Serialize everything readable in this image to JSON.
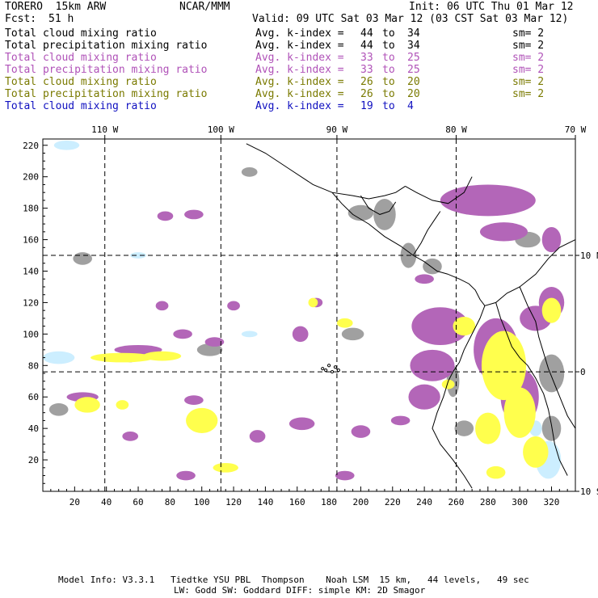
{
  "header": {
    "model": "TORERO  15km ARW",
    "org": "NCAR/MMM",
    "init": "Init: 06 UTC Thu 01 Mar 12",
    "fcst_label": "Fcst:",
    "fcst_value": "51 h",
    "valid": "Valid: 09 UTC Sat 03 Mar 12 (03 CST Sat 03 Mar 12)"
  },
  "legend_rows": [
    {
      "field": "Total cloud mixing ratio",
      "k": "Avg. k-index =",
      "a": "44",
      "to": "to",
      "b": "34",
      "sm": "sm= 2",
      "color": "#000000"
    },
    {
      "field": "Total precipitation mixing ratio",
      "k": "Avg. k-index =",
      "a": "44",
      "to": "to",
      "b": "34",
      "sm": "sm= 2",
      "color": "#000000"
    },
    {
      "field": "Total cloud mixing ratio",
      "k": "Avg. k-index =",
      "a": "33",
      "to": "to",
      "b": "25",
      "sm": "sm= 2",
      "color": "#b052b8"
    },
    {
      "field": "Total precipitation mixing ratio",
      "k": "Avg. k-index =",
      "a": "33",
      "to": "to",
      "b": "25",
      "sm": "sm= 2",
      "color": "#b052b8"
    },
    {
      "field": "Total cloud mixing ratio",
      "k": "Avg. k-index =",
      "a": "26",
      "to": "to",
      "b": "20",
      "sm": "sm= 2",
      "color": "#7a7a00"
    },
    {
      "field": "Total precipitation mixing ratio",
      "k": "Avg. k-index =",
      "a": "26",
      "to": "to",
      "b": "20",
      "sm": "sm= 2",
      "color": "#7a7a00"
    },
    {
      "field": "Total cloud mixing ratio",
      "k": "Avg. k-index =",
      "a": "19",
      "to": "to",
      "b": "4",
      "sm": "",
      "color": "#1010c0"
    }
  ],
  "footer": {
    "line1": "Model Info: V3.3.1   Tiedtke YSU PBL  Thompson    Noah LSM  15 km,   44 levels,   49 sec",
    "line2": "LW: Godd SW: Goddard DIFF: simple KM: 2D Smagor"
  },
  "chart_data": {
    "type": "heatmap",
    "xlim": [
      0,
      335
    ],
    "ylim": [
      0,
      224
    ],
    "x_ticks": [
      20,
      40,
      60,
      80,
      100,
      120,
      140,
      160,
      180,
      200,
      220,
      240,
      260,
      280,
      300,
      320
    ],
    "y_ticks": [
      20,
      40,
      60,
      80,
      100,
      120,
      140,
      160,
      180,
      200,
      220
    ],
    "lon_labels": [
      {
        "label": "110 W",
        "x": 39
      },
      {
        "label": "100 W",
        "x": 112
      },
      {
        "label": "90 W",
        "x": 185
      },
      {
        "label": "80 W",
        "x": 260
      },
      {
        "label": "70 W",
        "x": 335
      }
    ],
    "lat_labels": [
      {
        "label": "10 N",
        "y": 150
      },
      {
        "label": "0",
        "y": 76
      },
      {
        "label": "10 S",
        "y": 0
      }
    ],
    "grid_x": [
      39,
      112,
      185,
      260
    ],
    "grid_y": [
      150,
      76
    ],
    "colors": {
      "gray": "#a0a0a0",
      "purple": "#b366b8",
      "yellow": "#ffff4d",
      "lightblue": "#cceeff"
    },
    "blobs": [
      {
        "c": "gray",
        "x": 25,
        "y": 148,
        "rx": 6,
        "ry": 4
      },
      {
        "c": "gray",
        "x": 10,
        "y": 52,
        "rx": 6,
        "ry": 4
      },
      {
        "c": "gray",
        "x": 55,
        "y": 86,
        "rx": 5,
        "ry": 4
      },
      {
        "c": "gray",
        "x": 105,
        "y": 90,
        "rx": 8,
        "ry": 4
      },
      {
        "c": "gray",
        "x": 200,
        "y": 177,
        "rx": 8,
        "ry": 5
      },
      {
        "c": "gray",
        "x": 215,
        "y": 176,
        "rx": 7,
        "ry": 10
      },
      {
        "c": "gray",
        "x": 230,
        "y": 150,
        "rx": 5,
        "ry": 8
      },
      {
        "c": "gray",
        "x": 245,
        "y": 143,
        "rx": 6,
        "ry": 5
      },
      {
        "c": "gray",
        "x": 130,
        "y": 203,
        "rx": 5,
        "ry": 3
      },
      {
        "c": "gray",
        "x": 195,
        "y": 100,
        "rx": 7,
        "ry": 4
      },
      {
        "c": "gray",
        "x": 258,
        "y": 70,
        "rx": 4,
        "ry": 10
      },
      {
        "c": "gray",
        "x": 320,
        "y": 75,
        "rx": 8,
        "ry": 12
      },
      {
        "c": "gray",
        "x": 320,
        "y": 40,
        "rx": 6,
        "ry": 8
      },
      {
        "c": "gray",
        "x": 305,
        "y": 160,
        "rx": 8,
        "ry": 5
      },
      {
        "c": "gray",
        "x": 265,
        "y": 40,
        "rx": 6,
        "ry": 5
      },
      {
        "c": "purple",
        "x": 280,
        "y": 185,
        "rx": 30,
        "ry": 10
      },
      {
        "c": "purple",
        "x": 290,
        "y": 165,
        "rx": 15,
        "ry": 6
      },
      {
        "c": "purple",
        "x": 320,
        "y": 160,
        "rx": 6,
        "ry": 8
      },
      {
        "c": "purple",
        "x": 250,
        "y": 105,
        "rx": 18,
        "ry": 12
      },
      {
        "c": "purple",
        "x": 245,
        "y": 80,
        "rx": 14,
        "ry": 10
      },
      {
        "c": "purple",
        "x": 240,
        "y": 60,
        "rx": 10,
        "ry": 8
      },
      {
        "c": "purple",
        "x": 285,
        "y": 90,
        "rx": 14,
        "ry": 20
      },
      {
        "c": "purple",
        "x": 310,
        "y": 110,
        "rx": 10,
        "ry": 8
      },
      {
        "c": "purple",
        "x": 300,
        "y": 60,
        "rx": 12,
        "ry": 18
      },
      {
        "c": "purple",
        "x": 320,
        "y": 120,
        "rx": 8,
        "ry": 10
      },
      {
        "c": "purple",
        "x": 77,
        "y": 175,
        "rx": 5,
        "ry": 3
      },
      {
        "c": "purple",
        "x": 95,
        "y": 176,
        "rx": 6,
        "ry": 3
      },
      {
        "c": "purple",
        "x": 25,
        "y": 60,
        "rx": 10,
        "ry": 3
      },
      {
        "c": "purple",
        "x": 60,
        "y": 90,
        "rx": 15,
        "ry": 3
      },
      {
        "c": "purple",
        "x": 75,
        "y": 118,
        "rx": 4,
        "ry": 3
      },
      {
        "c": "purple",
        "x": 120,
        "y": 118,
        "rx": 4,
        "ry": 3
      },
      {
        "c": "purple",
        "x": 162,
        "y": 100,
        "rx": 5,
        "ry": 5
      },
      {
        "c": "purple",
        "x": 172,
        "y": 120,
        "rx": 4,
        "ry": 3
      },
      {
        "c": "purple",
        "x": 163,
        "y": 43,
        "rx": 8,
        "ry": 4
      },
      {
        "c": "purple",
        "x": 200,
        "y": 38,
        "rx": 6,
        "ry": 4
      },
      {
        "c": "purple",
        "x": 95,
        "y": 58,
        "rx": 6,
        "ry": 3
      },
      {
        "c": "purple",
        "x": 55,
        "y": 35,
        "rx": 5,
        "ry": 3
      },
      {
        "c": "purple",
        "x": 90,
        "y": 10,
        "rx": 6,
        "ry": 3
      },
      {
        "c": "purple",
        "x": 135,
        "y": 35,
        "rx": 5,
        "ry": 4
      },
      {
        "c": "purple",
        "x": 190,
        "y": 10,
        "rx": 6,
        "ry": 3
      },
      {
        "c": "purple",
        "x": 225,
        "y": 45,
        "rx": 6,
        "ry": 3
      },
      {
        "c": "purple",
        "x": 88,
        "y": 100,
        "rx": 6,
        "ry": 3
      },
      {
        "c": "purple",
        "x": 240,
        "y": 135,
        "rx": 6,
        "ry": 3
      },
      {
        "c": "purple",
        "x": 108,
        "y": 95,
        "rx": 6,
        "ry": 3
      },
      {
        "c": "yellow",
        "x": 290,
        "y": 80,
        "rx": 14,
        "ry": 22
      },
      {
        "c": "yellow",
        "x": 300,
        "y": 50,
        "rx": 10,
        "ry": 16
      },
      {
        "c": "yellow",
        "x": 280,
        "y": 40,
        "rx": 8,
        "ry": 10
      },
      {
        "c": "yellow",
        "x": 320,
        "y": 115,
        "rx": 6,
        "ry": 8
      },
      {
        "c": "yellow",
        "x": 265,
        "y": 105,
        "rx": 7,
        "ry": 6
      },
      {
        "c": "yellow",
        "x": 310,
        "y": 25,
        "rx": 8,
        "ry": 10
      },
      {
        "c": "yellow",
        "x": 50,
        "y": 85,
        "rx": 20,
        "ry": 3
      },
      {
        "c": "yellow",
        "x": 75,
        "y": 86,
        "rx": 12,
        "ry": 3
      },
      {
        "c": "yellow",
        "x": 28,
        "y": 55,
        "rx": 8,
        "ry": 5
      },
      {
        "c": "yellow",
        "x": 50,
        "y": 55,
        "rx": 4,
        "ry": 3
      },
      {
        "c": "yellow",
        "x": 100,
        "y": 45,
        "rx": 10,
        "ry": 8
      },
      {
        "c": "yellow",
        "x": 115,
        "y": 15,
        "rx": 8,
        "ry": 3
      },
      {
        "c": "yellow",
        "x": 190,
        "y": 107,
        "rx": 5,
        "ry": 3
      },
      {
        "c": "yellow",
        "x": 170,
        "y": 120,
        "rx": 3,
        "ry": 3
      },
      {
        "c": "yellow",
        "x": 285,
        "y": 12,
        "rx": 6,
        "ry": 4
      },
      {
        "c": "yellow",
        "x": 255,
        "y": 68,
        "rx": 4,
        "ry": 3
      },
      {
        "c": "lightblue",
        "x": 15,
        "y": 220,
        "rx": 8,
        "ry": 3
      },
      {
        "c": "lightblue",
        "x": 10,
        "y": 85,
        "rx": 10,
        "ry": 4
      },
      {
        "c": "lightblue",
        "x": 318,
        "y": 20,
        "rx": 8,
        "ry": 12
      },
      {
        "c": "lightblue",
        "x": 310,
        "y": 40,
        "rx": 4,
        "ry": 5
      },
      {
        "c": "lightblue",
        "x": 25,
        "y": 60,
        "rx": 3,
        "ry": 2
      },
      {
        "c": "lightblue",
        "x": 60,
        "y": 150,
        "rx": 5,
        "ry": 2
      },
      {
        "c": "lightblue",
        "x": 130,
        "y": 100,
        "rx": 5,
        "ry": 2
      }
    ],
    "coastlines": [
      [
        [
          128,
          221
        ],
        [
          140,
          215
        ],
        [
          155,
          205
        ],
        [
          170,
          195
        ],
        [
          182,
          190
        ],
        [
          195,
          188
        ],
        [
          205,
          186
        ],
        [
          215,
          188
        ],
        [
          222,
          190
        ],
        [
          228,
          194
        ]
      ],
      [
        [
          182,
          190
        ],
        [
          188,
          183
        ],
        [
          195,
          176
        ],
        [
          205,
          170
        ],
        [
          215,
          162
        ],
        [
          225,
          156
        ],
        [
          233,
          150
        ],
        [
          240,
          146
        ],
        [
          248,
          140
        ],
        [
          255,
          138
        ]
      ],
      [
        [
          228,
          194
        ],
        [
          235,
          190
        ],
        [
          245,
          185
        ],
        [
          255,
          183
        ],
        [
          265,
          190
        ],
        [
          270,
          200
        ]
      ],
      [
        [
          255,
          138
        ],
        [
          262,
          135
        ],
        [
          268,
          132
        ],
        [
          272,
          128
        ],
        [
          275,
          122
        ],
        [
          278,
          118
        ],
        [
          285,
          120
        ],
        [
          292,
          126
        ],
        [
          300,
          130
        ],
        [
          310,
          138
        ],
        [
          318,
          148
        ],
        [
          325,
          155
        ],
        [
          335,
          160
        ]
      ],
      [
        [
          278,
          118
        ],
        [
          275,
          110
        ],
        [
          270,
          100
        ],
        [
          265,
          90
        ],
        [
          262,
          82
        ],
        [
          258,
          76
        ],
        [
          255,
          70
        ],
        [
          252,
          60
        ],
        [
          248,
          50
        ],
        [
          245,
          40
        ],
        [
          250,
          30
        ],
        [
          258,
          20
        ],
        [
          265,
          10
        ],
        [
          270,
          2
        ]
      ],
      [
        [
          300,
          130
        ],
        [
          305,
          118
        ],
        [
          310,
          108
        ],
        [
          312,
          98
        ],
        [
          315,
          88
        ],
        [
          318,
          78
        ],
        [
          322,
          68
        ],
        [
          326,
          58
        ],
        [
          330,
          48
        ],
        [
          335,
          40
        ]
      ],
      [
        [
          285,
          120
        ],
        [
          288,
          110
        ],
        [
          292,
          100
        ],
        [
          295,
          92
        ],
        [
          300,
          85
        ],
        [
          305,
          80
        ],
        [
          310,
          72
        ],
        [
          315,
          62
        ],
        [
          318,
          52
        ],
        [
          320,
          42
        ],
        [
          322,
          30
        ],
        [
          325,
          20
        ],
        [
          330,
          10
        ]
      ],
      [
        [
          200,
          188
        ],
        [
          205,
          180
        ],
        [
          212,
          176
        ],
        [
          218,
          178
        ],
        [
          222,
          184
        ]
      ],
      [
        [
          233,
          150
        ],
        [
          238,
          158
        ],
        [
          242,
          166
        ],
        [
          246,
          172
        ],
        [
          250,
          178
        ]
      ]
    ],
    "islands": [
      [
        176,
        78
      ],
      [
        180,
        80
      ],
      [
        184,
        79
      ],
      [
        182,
        76
      ],
      [
        178,
        77
      ],
      [
        186,
        77
      ]
    ]
  }
}
